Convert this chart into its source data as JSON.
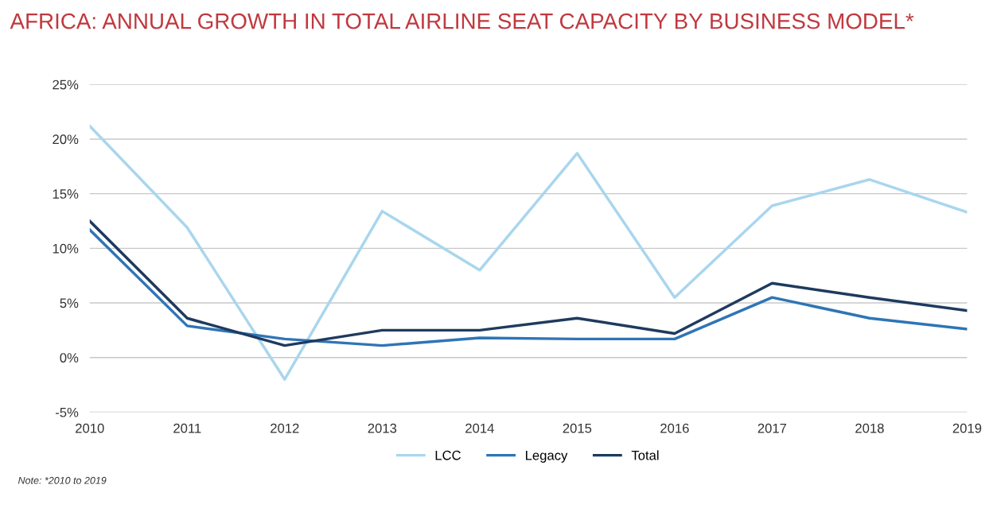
{
  "chart_data": {
    "type": "line",
    "title": "AFRICA: ANNUAL GROWTH IN TOTAL AIRLINE SEAT CAPACITY BY BUSINESS MODEL*",
    "x": [
      2010,
      2011,
      2012,
      2013,
      2014,
      2015,
      2016,
      2017,
      2018,
      2019
    ],
    "series": [
      {
        "name": "LCC",
        "color": "#a9d6ee",
        "values": [
          21.2,
          11.9,
          -2.0,
          13.4,
          8.0,
          18.7,
          5.5,
          13.9,
          16.3,
          13.3
        ]
      },
      {
        "name": "Legacy",
        "color": "#2e75b6",
        "values": [
          11.7,
          2.9,
          1.7,
          1.1,
          1.8,
          1.7,
          1.7,
          5.5,
          3.6,
          2.6
        ]
      },
      {
        "name": "Total",
        "color": "#1f3a5f",
        "values": [
          12.5,
          3.6,
          1.1,
          2.5,
          2.5,
          3.6,
          2.2,
          6.8,
          5.5,
          4.3
        ]
      }
    ],
    "xlim": [
      2010,
      2019
    ],
    "xticks": [
      2010,
      2011,
      2012,
      2013,
      2014,
      2015,
      2016,
      2017,
      2018,
      2019
    ],
    "ylim": [
      -5,
      25
    ],
    "yticks": [
      {
        "value": -5,
        "label": "-5%"
      },
      {
        "value": 0,
        "label": "0%"
      },
      {
        "value": 5,
        "label": "5%"
      },
      {
        "value": 10,
        "label": "10%"
      },
      {
        "value": 15,
        "label": "15%"
      },
      {
        "value": 20,
        "label": "20%"
      },
      {
        "value": 25,
        "label": "25%"
      }
    ],
    "grid": "y",
    "legend": "bottom",
    "marker": "none",
    "line_style": "solid",
    "annotations": [
      "Note: *2010 to 2019"
    ]
  }
}
